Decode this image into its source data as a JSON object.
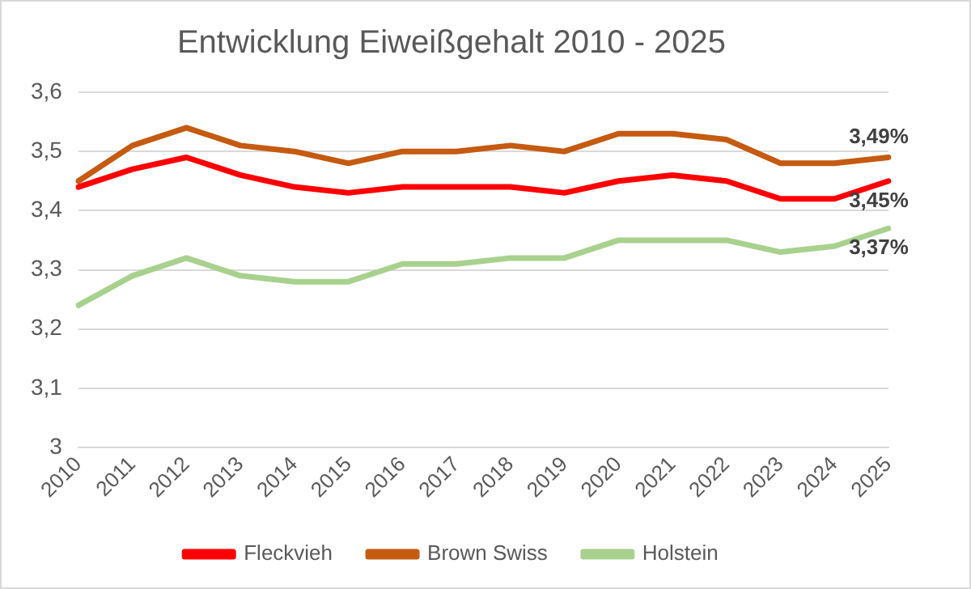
{
  "chart_data": {
    "type": "line",
    "title": "Entwicklung Eiweißgehalt 2010 - 2025",
    "categories": [
      "2010",
      "2011",
      "2012",
      "2013",
      "2014",
      "2015",
      "2016",
      "2017",
      "2018",
      "2019",
      "2020",
      "2021",
      "2022",
      "2023",
      "2024",
      "2025"
    ],
    "series": [
      {
        "name": "Fleckvieh",
        "color": "#ff0000",
        "values": [
          3.44,
          3.47,
          3.49,
          3.46,
          3.44,
          3.43,
          3.44,
          3.44,
          3.44,
          3.43,
          3.45,
          3.46,
          3.45,
          3.42,
          3.42,
          3.45
        ],
        "value_labels": [
          null,
          null,
          null,
          null,
          null,
          null,
          null,
          null,
          null,
          null,
          null,
          null,
          null,
          null,
          null,
          "3,45%"
        ]
      },
      {
        "name": "Brown Swiss",
        "color": "#c55a11",
        "values": [
          3.45,
          3.51,
          3.54,
          3.51,
          3.5,
          3.48,
          3.5,
          3.5,
          3.51,
          3.5,
          3.53,
          3.53,
          3.52,
          3.48,
          3.48,
          3.49
        ],
        "value_labels": [
          null,
          null,
          null,
          null,
          null,
          null,
          null,
          null,
          null,
          null,
          null,
          null,
          null,
          null,
          null,
          "3,49%"
        ]
      },
      {
        "name": "Holstein",
        "color": "#a9d18e",
        "values": [
          3.24,
          3.29,
          3.32,
          3.29,
          3.28,
          3.28,
          3.31,
          3.31,
          3.32,
          3.32,
          3.35,
          3.35,
          3.35,
          3.33,
          3.34,
          3.37
        ],
        "value_labels": [
          null,
          null,
          null,
          null,
          null,
          null,
          null,
          null,
          null,
          null,
          null,
          null,
          null,
          null,
          null,
          "3,37%"
        ]
      }
    ],
    "ylim": [
      3,
      3.6
    ],
    "yticks": [
      3,
      {
        "value": 3.1,
        "label": "3,1"
      },
      {
        "value": 3.2,
        "label": "3,2"
      },
      {
        "value": 3.3,
        "label": "3,3"
      },
      {
        "value": 3.4,
        "label": "3,4"
      },
      {
        "value": 3.5,
        "label": "3,5"
      },
      {
        "value": 3.6,
        "label": "3,6"
      }
    ],
    "grid": "y",
    "legend": "bottom",
    "marker": "none",
    "line_style": "solid"
  }
}
